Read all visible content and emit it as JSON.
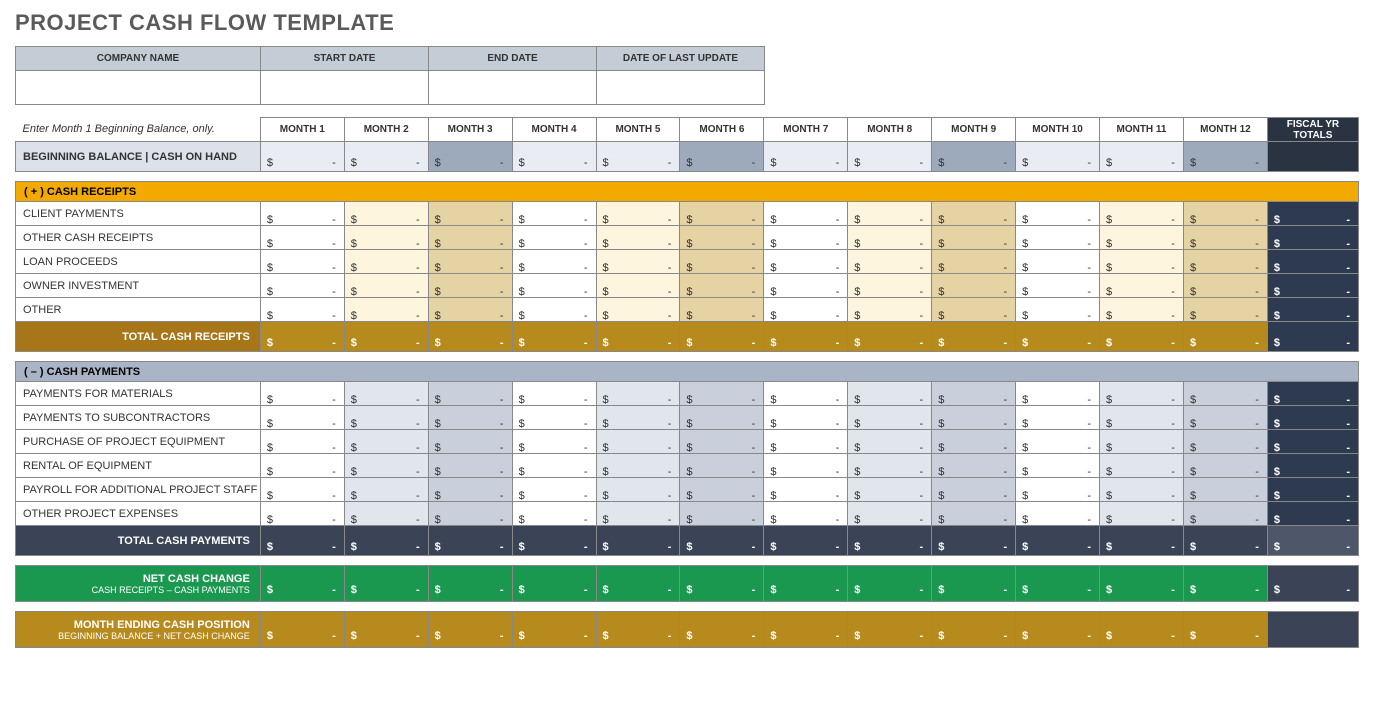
{
  "title": "PROJECT CASH FLOW TEMPLATE",
  "info_headers": [
    "COMPANY NAME",
    "START DATE",
    "END DATE",
    "DATE OF LAST UPDATE"
  ],
  "note": "Enter Month 1 Beginning Balance, only.",
  "months": [
    "MONTH 1",
    "MONTH 2",
    "MONTH 3",
    "MONTH 4",
    "MONTH 5",
    "MONTH 6",
    "MONTH 7",
    "MONTH 8",
    "MONTH 9",
    "MONTH 10",
    "MONTH 11",
    "MONTH 12"
  ],
  "fiscal": "FISCAL YR TOTALS",
  "beg_bal": "BEGINNING BALANCE | CASH ON HAND",
  "sym": "$",
  "dash": "-",
  "sh_rec": "( + )  CASH RECEIPTS",
  "rec_rows": [
    "CLIENT PAYMENTS",
    "OTHER CASH RECEIPTS",
    "LOAN PROCEEDS",
    "OWNER INVESTMENT",
    "OTHER"
  ],
  "rec_total": "TOTAL CASH RECEIPTS",
  "sh_pay": "( – )  CASH PAYMENTS",
  "pay_rows": [
    "PAYMENTS FOR MATERIALS",
    "PAYMENTS TO SUBCONTRACTORS",
    "PURCHASE OF PROJECT EQUIPMENT",
    "RENTAL OF EQUIPMENT",
    "PAYROLL FOR ADDITIONAL PROJECT STAFF",
    "OTHER PROJECT EXPENSES"
  ],
  "pay_total": "TOTAL CASH PAYMENTS",
  "net_t": "NET CASH CHANGE",
  "net_s": "CASH RECEIPTS – CASH PAYMENTS",
  "end_t": "MONTH ENDING CASH POSITION",
  "end_s": "BEGINNING BALANCE + NET CASH CHANGE",
  "shade_cols": [
    2,
    5,
    8,
    11
  ]
}
